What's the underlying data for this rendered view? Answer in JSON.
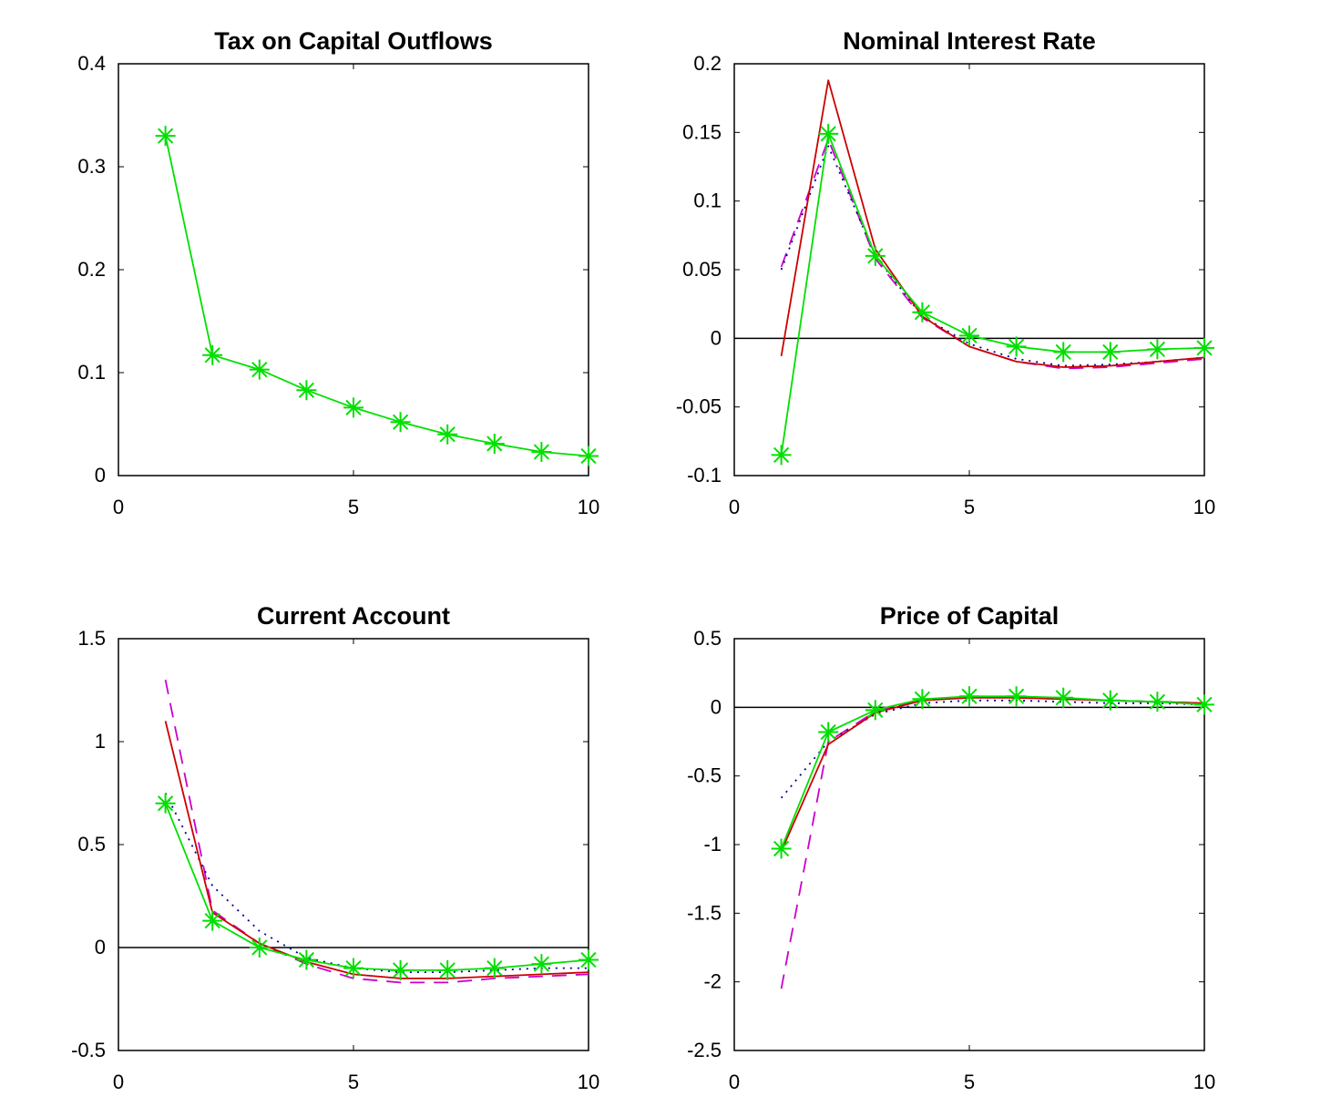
{
  "chart_data": [
    {
      "type": "line",
      "title": "Tax on Capital Outflows",
      "xlabel": "",
      "ylabel": "",
      "xlim": [
        0,
        10
      ],
      "ylim": [
        0,
        0.4
      ],
      "xticks": [
        0,
        5,
        10
      ],
      "xtick_labels": [
        "0",
        "5",
        "10"
      ],
      "yticks": [
        0,
        0.1,
        0.2,
        0.3,
        0.4
      ],
      "ytick_labels": [
        "0",
        "0.1",
        "0.2",
        "0.3",
        "0.4"
      ],
      "zero_line": false,
      "x": [
        1,
        2,
        3,
        4,
        5,
        6,
        7,
        8,
        9,
        10
      ],
      "series": [
        {
          "color": "#00e000",
          "style": "solid",
          "marker": "asterisk",
          "values": [
            0.33,
            0.117,
            0.103,
            0.083,
            0.066,
            0.052,
            0.04,
            0.031,
            0.023,
            0.019
          ]
        }
      ]
    },
    {
      "type": "line",
      "title": "Nominal Interest Rate",
      "xlabel": "",
      "ylabel": "",
      "xlim": [
        0,
        10
      ],
      "ylim": [
        -0.1,
        0.2
      ],
      "xticks": [
        0,
        5,
        10
      ],
      "xtick_labels": [
        "0",
        "5",
        "10"
      ],
      "yticks": [
        -0.1,
        -0.05,
        0,
        0.05,
        0.1,
        0.15,
        0.2
      ],
      "ytick_labels": [
        "-0.1",
        "-0.05",
        "0",
        "0.05",
        "0.1",
        "0.15",
        "0.2"
      ],
      "zero_line": true,
      "x": [
        1,
        2,
        3,
        4,
        5,
        6,
        7,
        8,
        9,
        10
      ],
      "series": [
        {
          "color": "#cc00cc",
          "style": "dashed",
          "marker": "none",
          "values": [
            0.052,
            0.145,
            0.058,
            0.015,
            -0.006,
            -0.017,
            -0.022,
            -0.021,
            -0.018,
            -0.015
          ]
        },
        {
          "color": "#000099",
          "style": "dotted",
          "marker": "none",
          "values": [
            0.05,
            0.14,
            0.06,
            0.016,
            -0.004,
            -0.015,
            -0.02,
            -0.019,
            -0.017,
            -0.014
          ]
        },
        {
          "color": "#cc0000",
          "style": "solid",
          "marker": "none",
          "values": [
            -0.013,
            0.188,
            0.065,
            0.016,
            -0.006,
            -0.017,
            -0.021,
            -0.02,
            -0.017,
            -0.014
          ]
        },
        {
          "color": "#00e000",
          "style": "solid",
          "marker": "asterisk",
          "values": [
            -0.085,
            0.149,
            0.06,
            0.019,
            0.002,
            -0.006,
            -0.01,
            -0.01,
            -0.008,
            -0.007
          ]
        }
      ]
    },
    {
      "type": "line",
      "title": "Current Account",
      "xlabel": "",
      "ylabel": "",
      "xlim": [
        0,
        10
      ],
      "ylim": [
        -0.5,
        1.5
      ],
      "xticks": [
        0,
        5,
        10
      ],
      "xtick_labels": [
        "0",
        "5",
        "10"
      ],
      "yticks": [
        -0.5,
        0,
        0.5,
        1,
        1.5
      ],
      "ytick_labels": [
        "-0.5",
        "0",
        "0.5",
        "1",
        "1.5"
      ],
      "zero_line": true,
      "x": [
        1,
        2,
        3,
        4,
        5,
        6,
        7,
        8,
        9,
        10
      ],
      "series": [
        {
          "color": "#cc00cc",
          "style": "dashed",
          "marker": "none",
          "values": [
            1.3,
            0.18,
            0.02,
            -0.08,
            -0.15,
            -0.17,
            -0.17,
            -0.15,
            -0.14,
            -0.13
          ]
        },
        {
          "color": "#000099",
          "style": "dotted",
          "marker": "none",
          "values": [
            0.75,
            0.3,
            0.08,
            -0.05,
            -0.1,
            -0.12,
            -0.12,
            -0.11,
            -0.1,
            -0.1
          ]
        },
        {
          "color": "#cc0000",
          "style": "solid",
          "marker": "none",
          "values": [
            1.1,
            0.17,
            0.02,
            -0.07,
            -0.13,
            -0.15,
            -0.15,
            -0.14,
            -0.13,
            -0.12
          ]
        },
        {
          "color": "#00e000",
          "style": "solid",
          "marker": "asterisk",
          "values": [
            0.7,
            0.13,
            0.0,
            -0.06,
            -0.1,
            -0.11,
            -0.11,
            -0.1,
            -0.08,
            -0.06
          ]
        }
      ]
    },
    {
      "type": "line",
      "title": "Price of Capital",
      "xlabel": "",
      "ylabel": "",
      "xlim": [
        0,
        10
      ],
      "ylim": [
        -2.5,
        0.5
      ],
      "xticks": [
        0,
        5,
        10
      ],
      "xtick_labels": [
        "0",
        "5",
        "10"
      ],
      "yticks": [
        -2.5,
        -2,
        -1.5,
        -1,
        -0.5,
        0,
        0.5
      ],
      "ytick_labels": [
        "-2.5",
        "-2",
        "-1.5",
        "-1",
        "-0.5",
        "0",
        "0.5"
      ],
      "zero_line": true,
      "x": [
        1,
        2,
        3,
        4,
        5,
        6,
        7,
        8,
        9,
        10
      ],
      "series": [
        {
          "color": "#cc00cc",
          "style": "dashed",
          "marker": "none",
          "values": [
            -2.05,
            -0.25,
            -0.03,
            0.05,
            0.08,
            0.07,
            0.06,
            0.05,
            0.04,
            0.03
          ]
        },
        {
          "color": "#000099",
          "style": "dotted",
          "marker": "none",
          "values": [
            -0.66,
            -0.25,
            -0.05,
            0.03,
            0.05,
            0.05,
            0.04,
            0.03,
            0.03,
            0.02
          ]
        },
        {
          "color": "#cc0000",
          "style": "solid",
          "marker": "none",
          "values": [
            -1.05,
            -0.27,
            -0.04,
            0.05,
            0.07,
            0.07,
            0.06,
            0.05,
            0.04,
            0.03
          ]
        },
        {
          "color": "#00e000",
          "style": "solid",
          "marker": "asterisk",
          "values": [
            -1.03,
            -0.18,
            -0.02,
            0.06,
            0.08,
            0.08,
            0.07,
            0.05,
            0.04,
            0.02
          ]
        }
      ]
    }
  ]
}
